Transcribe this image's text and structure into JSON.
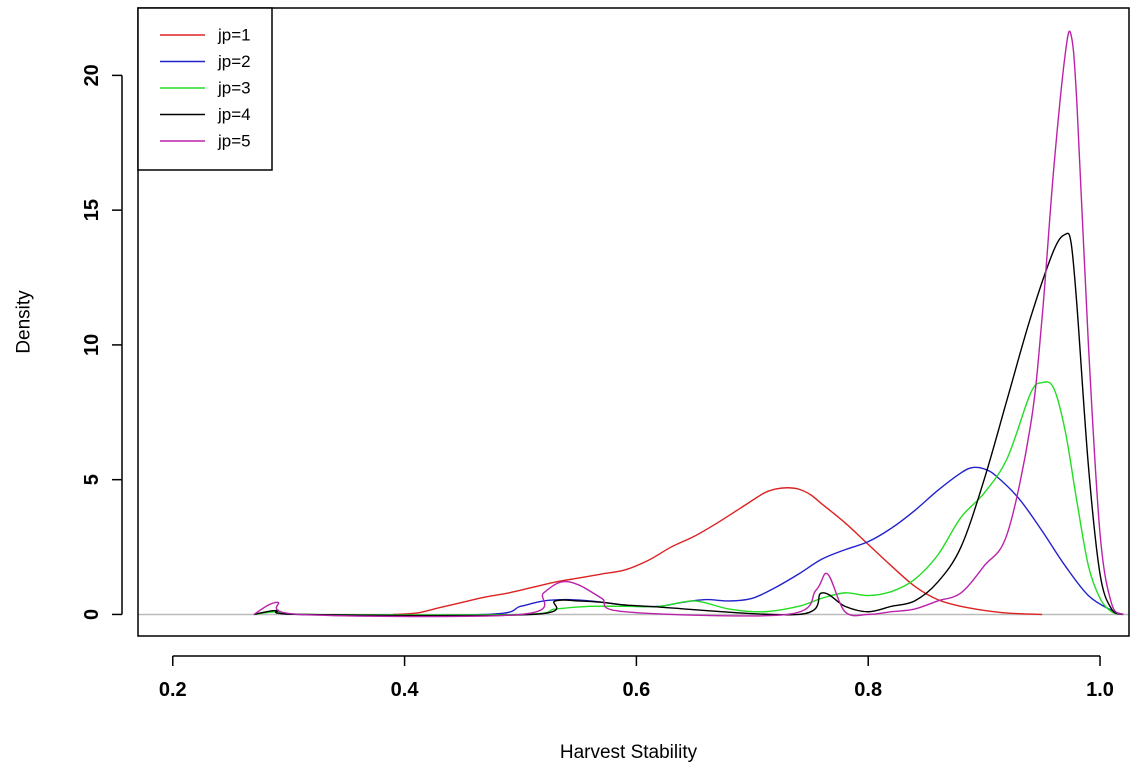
{
  "chart_data": {
    "type": "line",
    "xlabel": "Harvest Stability",
    "ylabel": "Density",
    "xlim": [
      0.17,
      1.025
    ],
    "ylim": [
      -0.8,
      22.5
    ],
    "x_ticks": [
      "0.2",
      "0.4",
      "0.6",
      "0.8",
      "1.0"
    ],
    "y_ticks": [
      "0",
      "5",
      "10",
      "15",
      "20"
    ],
    "baseline": 0,
    "grid": false,
    "legend_position": "top-left",
    "series": [
      {
        "name": "jp=1",
        "color": "#dd2222",
        "x": [
          0.39,
          0.41,
          0.43,
          0.45,
          0.47,
          0.49,
          0.51,
          0.53,
          0.55,
          0.57,
          0.59,
          0.61,
          0.63,
          0.65,
          0.67,
          0.69,
          0.71,
          0.72,
          0.73,
          0.74,
          0.75,
          0.76,
          0.78,
          0.8,
          0.82,
          0.84,
          0.86,
          0.88,
          0.9,
          0.92,
          0.95
        ],
        "y": [
          0.0,
          0.05,
          0.25,
          0.45,
          0.65,
          0.8,
          1.0,
          1.2,
          1.35,
          1.5,
          1.65,
          2.0,
          2.5,
          2.9,
          3.4,
          3.95,
          4.5,
          4.65,
          4.7,
          4.65,
          4.45,
          4.1,
          3.4,
          2.6,
          1.8,
          1.05,
          0.55,
          0.3,
          0.15,
          0.05,
          0.0
        ]
      },
      {
        "name": "jp=2",
        "color": "#2222cc",
        "x": [
          0.27,
          0.29,
          0.31,
          0.47,
          0.5,
          0.52,
          0.54,
          0.56,
          0.58,
          0.6,
          0.62,
          0.64,
          0.66,
          0.68,
          0.7,
          0.72,
          0.74,
          0.76,
          0.78,
          0.8,
          0.82,
          0.84,
          0.86,
          0.88,
          0.89,
          0.9,
          0.91,
          0.93,
          0.95,
          0.97,
          0.99,
          1.01,
          1.02
        ],
        "y": [
          0.0,
          0.12,
          0.0,
          0.0,
          0.3,
          0.5,
          0.55,
          0.5,
          0.4,
          0.3,
          0.3,
          0.45,
          0.55,
          0.5,
          0.6,
          1.0,
          1.5,
          2.05,
          2.4,
          2.7,
          3.2,
          3.85,
          4.6,
          5.25,
          5.45,
          5.4,
          5.15,
          4.3,
          3.1,
          1.8,
          0.7,
          0.15,
          0.0
        ]
      },
      {
        "name": "jp=3",
        "color": "#22dd22",
        "x": [
          0.27,
          0.29,
          0.32,
          0.5,
          0.53,
          0.56,
          0.59,
          0.62,
          0.65,
          0.68,
          0.71,
          0.74,
          0.76,
          0.78,
          0.8,
          0.82,
          0.84,
          0.86,
          0.88,
          0.9,
          0.92,
          0.94,
          0.95,
          0.96,
          0.97,
          0.98,
          0.99,
          1.0,
          1.01,
          1.02
        ],
        "y": [
          0.0,
          0.1,
          0.0,
          0.0,
          0.2,
          0.3,
          0.3,
          0.3,
          0.5,
          0.2,
          0.1,
          0.3,
          0.6,
          0.8,
          0.7,
          0.85,
          1.3,
          2.2,
          3.6,
          4.5,
          5.8,
          8.2,
          8.6,
          8.4,
          6.8,
          4.2,
          1.8,
          0.6,
          0.1,
          0.0
        ]
      },
      {
        "name": "jp=4",
        "color": "#000000",
        "x": [
          0.27,
          0.29,
          0.31,
          0.51,
          0.53,
          0.55,
          0.57,
          0.59,
          0.61,
          0.74,
          0.76,
          0.78,
          0.8,
          0.82,
          0.84,
          0.86,
          0.88,
          0.9,
          0.92,
          0.94,
          0.96,
          0.97,
          0.975,
          0.98,
          0.99,
          1.0,
          1.01,
          1.02
        ],
        "y": [
          0.0,
          0.15,
          0.0,
          0.0,
          0.5,
          0.5,
          0.45,
          0.35,
          0.3,
          0.0,
          0.8,
          0.3,
          0.1,
          0.3,
          0.5,
          1.2,
          2.5,
          5.0,
          8.0,
          11.0,
          13.5,
          14.1,
          13.8,
          11.5,
          5.5,
          1.5,
          0.2,
          0.0
        ]
      },
      {
        "name": "jp=5",
        "color": "#bb22aa",
        "x": [
          0.27,
          0.29,
          0.31,
          0.5,
          0.52,
          0.535,
          0.55,
          0.57,
          0.59,
          0.73,
          0.755,
          0.765,
          0.78,
          0.8,
          0.82,
          0.84,
          0.86,
          0.88,
          0.9,
          0.92,
          0.94,
          0.95,
          0.96,
          0.97,
          0.975,
          0.98,
          0.99,
          1.0,
          1.01,
          1.02
        ],
        "y": [
          0.0,
          0.45,
          0.0,
          0.0,
          0.8,
          1.2,
          1.1,
          0.6,
          0.1,
          0.0,
          0.9,
          1.5,
          0.1,
          0.0,
          0.1,
          0.2,
          0.5,
          0.8,
          1.8,
          3.0,
          7.0,
          11.0,
          16.5,
          20.8,
          21.5,
          19.0,
          10.0,
          3.0,
          0.4,
          0.0
        ]
      }
    ]
  }
}
